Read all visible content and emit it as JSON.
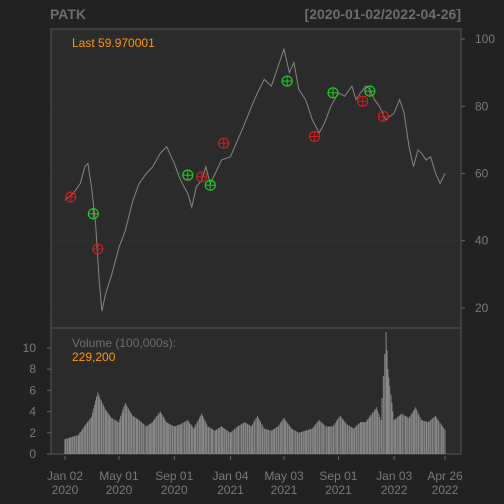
{
  "chart_data": {
    "type": "line",
    "ticker": "PATK",
    "date_range": "[2020-01-02/2022-04-26]",
    "last_label": "Last 59.970001",
    "volume_label": "Volume (100,000s):",
    "volume_last": "229,200",
    "price_ticks": [
      "100",
      "80",
      "60",
      "40",
      "20"
    ],
    "price_tick_values": [
      100,
      80,
      60,
      40,
      20
    ],
    "price_ylim": [
      14,
      103
    ],
    "volume_ticks": [
      "10",
      "8",
      "6",
      "4",
      "2",
      "0"
    ],
    "volume_tick_values": [
      10,
      8,
      6,
      4,
      2,
      0
    ],
    "volume_ylim": [
      0,
      11.5
    ],
    "x_ticks": [
      {
        "line1": "Jan 02",
        "line2": "2020",
        "date": "2020-01-02"
      },
      {
        "line1": "May 01",
        "line2": "2020",
        "date": "2020-05-01"
      },
      {
        "line1": "Sep 01",
        "line2": "2020",
        "date": "2020-09-01"
      },
      {
        "line1": "Jan 04",
        "line2": "2021",
        "date": "2021-01-04"
      },
      {
        "line1": "May 03",
        "line2": "2021",
        "date": "2021-05-03"
      },
      {
        "line1": "Sep 01",
        "line2": "2021",
        "date": "2021-09-01"
      },
      {
        "line1": "Jan 03",
        "line2": "2022",
        "date": "2022-01-03"
      },
      {
        "line1": "Apr 26",
        "line2": "2022",
        "date": "2022-04-26"
      }
    ],
    "x_range": [
      "2020-01-02",
      "2022-04-26"
    ],
    "price_series": [
      [
        "2020-01-02",
        52
      ],
      [
        "2020-01-20",
        54
      ],
      [
        "2020-02-05",
        57
      ],
      [
        "2020-02-15",
        62
      ],
      [
        "2020-02-22",
        63
      ],
      [
        "2020-03-01",
        56
      ],
      [
        "2020-03-10",
        45
      ],
      [
        "2020-03-18",
        28
      ],
      [
        "2020-03-24",
        19
      ],
      [
        "2020-04-01",
        24
      ],
      [
        "2020-04-15",
        30
      ],
      [
        "2020-05-01",
        38
      ],
      [
        "2020-05-15",
        43
      ],
      [
        "2020-06-01",
        52
      ],
      [
        "2020-06-15",
        57
      ],
      [
        "2020-07-01",
        60
      ],
      [
        "2020-07-15",
        62
      ],
      [
        "2020-08-01",
        66
      ],
      [
        "2020-08-15",
        68
      ],
      [
        "2020-09-01",
        63
      ],
      [
        "2020-09-15",
        58
      ],
      [
        "2020-10-01",
        54
      ],
      [
        "2020-10-10",
        50
      ],
      [
        "2020-10-20",
        56
      ],
      [
        "2020-11-01",
        58
      ],
      [
        "2020-11-10",
        62
      ],
      [
        "2020-11-20",
        57
      ],
      [
        "2020-12-01",
        60
      ],
      [
        "2020-12-15",
        64
      ],
      [
        "2021-01-04",
        65
      ],
      [
        "2021-01-20",
        70
      ],
      [
        "2021-02-05",
        75
      ],
      [
        "2021-02-20",
        80
      ],
      [
        "2021-03-05",
        84
      ],
      [
        "2021-03-20",
        88
      ],
      [
        "2021-04-05",
        86
      ],
      [
        "2021-04-20",
        92
      ],
      [
        "2021-05-03",
        97
      ],
      [
        "2021-05-15",
        90
      ],
      [
        "2021-05-25",
        93
      ],
      [
        "2021-06-05",
        85
      ],
      [
        "2021-06-20",
        82
      ],
      [
        "2021-07-05",
        76
      ],
      [
        "2021-07-20",
        72
      ],
      [
        "2021-08-01",
        75
      ],
      [
        "2021-08-15",
        80
      ],
      [
        "2021-09-01",
        84
      ],
      [
        "2021-09-15",
        83
      ],
      [
        "2021-10-01",
        86
      ],
      [
        "2021-10-10",
        82
      ],
      [
        "2021-10-20",
        84
      ],
      [
        "2021-11-01",
        86
      ],
      [
        "2021-11-10",
        85
      ],
      [
        "2021-11-20",
        82
      ],
      [
        "2021-12-01",
        80
      ],
      [
        "2021-12-15",
        76
      ],
      [
        "2022-01-03",
        78
      ],
      [
        "2022-01-15",
        82
      ],
      [
        "2022-01-25",
        78
      ],
      [
        "2022-02-05",
        68
      ],
      [
        "2022-02-15",
        62
      ],
      [
        "2022-02-25",
        67
      ],
      [
        "2022-03-05",
        66
      ],
      [
        "2022-03-15",
        64
      ],
      [
        "2022-03-25",
        65
      ],
      [
        "2022-04-05",
        60
      ],
      [
        "2022-04-15",
        57
      ],
      [
        "2022-04-26",
        60
      ]
    ],
    "volume_series": [
      [
        "2020-01-02",
        1.4
      ],
      [
        "2020-02-01",
        1.8
      ],
      [
        "2020-03-01",
        3.5
      ],
      [
        "2020-03-15",
        5.8
      ],
      [
        "2020-04-01",
        4.2
      ],
      [
        "2020-04-15",
        3.4
      ],
      [
        "2020-05-01",
        3.0
      ],
      [
        "2020-05-15",
        4.8
      ],
      [
        "2020-06-01",
        3.6
      ],
      [
        "2020-06-15",
        3.2
      ],
      [
        "2020-07-01",
        2.6
      ],
      [
        "2020-07-15",
        3.0
      ],
      [
        "2020-08-01",
        4.0
      ],
      [
        "2020-08-15",
        3.0
      ],
      [
        "2020-09-01",
        2.6
      ],
      [
        "2020-09-15",
        2.8
      ],
      [
        "2020-10-01",
        3.2
      ],
      [
        "2020-10-15",
        2.4
      ],
      [
        "2020-11-01",
        3.8
      ],
      [
        "2020-11-15",
        2.6
      ],
      [
        "2020-12-01",
        2.2
      ],
      [
        "2020-12-15",
        2.6
      ],
      [
        "2021-01-04",
        2.0
      ],
      [
        "2021-01-20",
        2.6
      ],
      [
        "2021-02-05",
        3.0
      ],
      [
        "2021-02-20",
        2.6
      ],
      [
        "2021-03-05",
        3.6
      ],
      [
        "2021-03-20",
        2.4
      ],
      [
        "2021-04-05",
        2.2
      ],
      [
        "2021-04-20",
        2.6
      ],
      [
        "2021-05-03",
        3.4
      ],
      [
        "2021-05-20",
        2.4
      ],
      [
        "2021-06-05",
        2.0
      ],
      [
        "2021-06-20",
        2.2
      ],
      [
        "2021-07-05",
        2.4
      ],
      [
        "2021-07-20",
        3.2
      ],
      [
        "2021-08-05",
        2.6
      ],
      [
        "2021-08-20",
        2.6
      ],
      [
        "2021-09-05",
        3.6
      ],
      [
        "2021-09-20",
        2.8
      ],
      [
        "2021-10-05",
        2.4
      ],
      [
        "2021-10-20",
        3.0
      ],
      [
        "2021-11-01",
        3.0
      ],
      [
        "2021-11-15",
        3.8
      ],
      [
        "2021-11-25",
        4.4
      ],
      [
        "2021-12-05",
        3.2
      ],
      [
        "2021-12-16",
        11.5
      ],
      [
        "2021-12-20",
        8.0
      ],
      [
        "2022-01-03",
        3.2
      ],
      [
        "2022-01-20",
        3.8
      ],
      [
        "2022-02-05",
        3.4
      ],
      [
        "2022-02-20",
        4.4
      ],
      [
        "2022-03-05",
        3.2
      ],
      [
        "2022-03-20",
        3.0
      ],
      [
        "2022-04-05",
        3.6
      ],
      [
        "2022-04-26",
        2.3
      ]
    ],
    "buy_signals": [
      [
        "2020-03-05",
        48
      ],
      [
        "2020-10-01",
        59.5
      ],
      [
        "2020-11-20",
        56.5
      ],
      [
        "2021-05-10",
        87.5
      ],
      [
        "2021-08-20",
        84
      ],
      [
        "2021-11-10",
        84.5
      ]
    ],
    "sell_signals": [
      [
        "2020-01-15",
        53
      ],
      [
        "2020-03-15",
        37.5
      ],
      [
        "2020-11-01",
        59
      ],
      [
        "2020-12-20",
        69
      ],
      [
        "2021-07-10",
        71
      ],
      [
        "2021-10-25",
        81.5
      ],
      [
        "2021-12-10",
        77
      ]
    ],
    "colors": {
      "background": "#222222",
      "panel": "#2b2b2b",
      "price_line": "#858585",
      "volume_bars": "#8a8a8a",
      "buy": "#22cc22",
      "sell": "#cc1f1f",
      "last": "#ff9900",
      "text": "#7a7a7a"
    }
  }
}
